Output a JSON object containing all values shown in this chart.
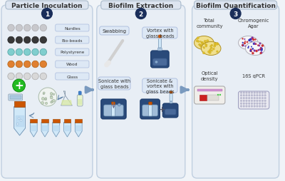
{
  "panel1_title": "Particle Inoculation",
  "panel2_title": "Biofilm Extraction",
  "panel3_title": "Biofilm Quantification",
  "particle_labels": [
    "Nurdles",
    "Bio-beads",
    "Polystyrene",
    "Wood",
    "Glass"
  ],
  "particle_colors": [
    "#c8c8cc",
    "#383838",
    "#80cece",
    "#e08030",
    "#d8d8d8"
  ],
  "particle_edge_colors": [
    "#aaaaae",
    "#222222",
    "#50a0a0",
    "#b06010",
    "#aaaaaa"
  ],
  "panel2_labels_tl": "Swabbing",
  "panel2_labels_tr": "Vortex with\nglass beads",
  "panel2_labels_bl": "Sonicate with\nglass beads",
  "panel2_labels_br": "Sonicate &\nvortex with\nglass beads",
  "panel3_tl": "Total\ncommunity",
  "panel3_tr": "Chromogenic\nAgar",
  "panel3_bl": "Optical\ndensity",
  "panel3_br": "16S qPCR",
  "bg_panel": "#e8eef5",
  "bg_main": "#f0f4f8",
  "title_box_color": "#dde5f0",
  "num_circle_color": "#1a2e5a",
  "label_box_color": "#dde8f5",
  "arrow_color": "#7a9abf",
  "text_color": "#333333",
  "plate_yellow": "#f0e090",
  "plate_yellow2": "#e8d070",
  "plate_white": "#f8f8f8",
  "chrom_colors": [
    "#cc3030",
    "#3030bb",
    "#8030a0"
  ],
  "device_color": "#2a4a7a",
  "device_light": "#4a6a9a",
  "colony_color": "#e0c030",
  "tube_body": "#d0e8f8",
  "tube_cap": "#cc5500",
  "flask_body": "#e8f0f8",
  "bottle_body": "#e8f4d0",
  "bottle_cap": "#4080cc",
  "plus_green": "#22bb22",
  "swab_color": "#d0d0d0"
}
